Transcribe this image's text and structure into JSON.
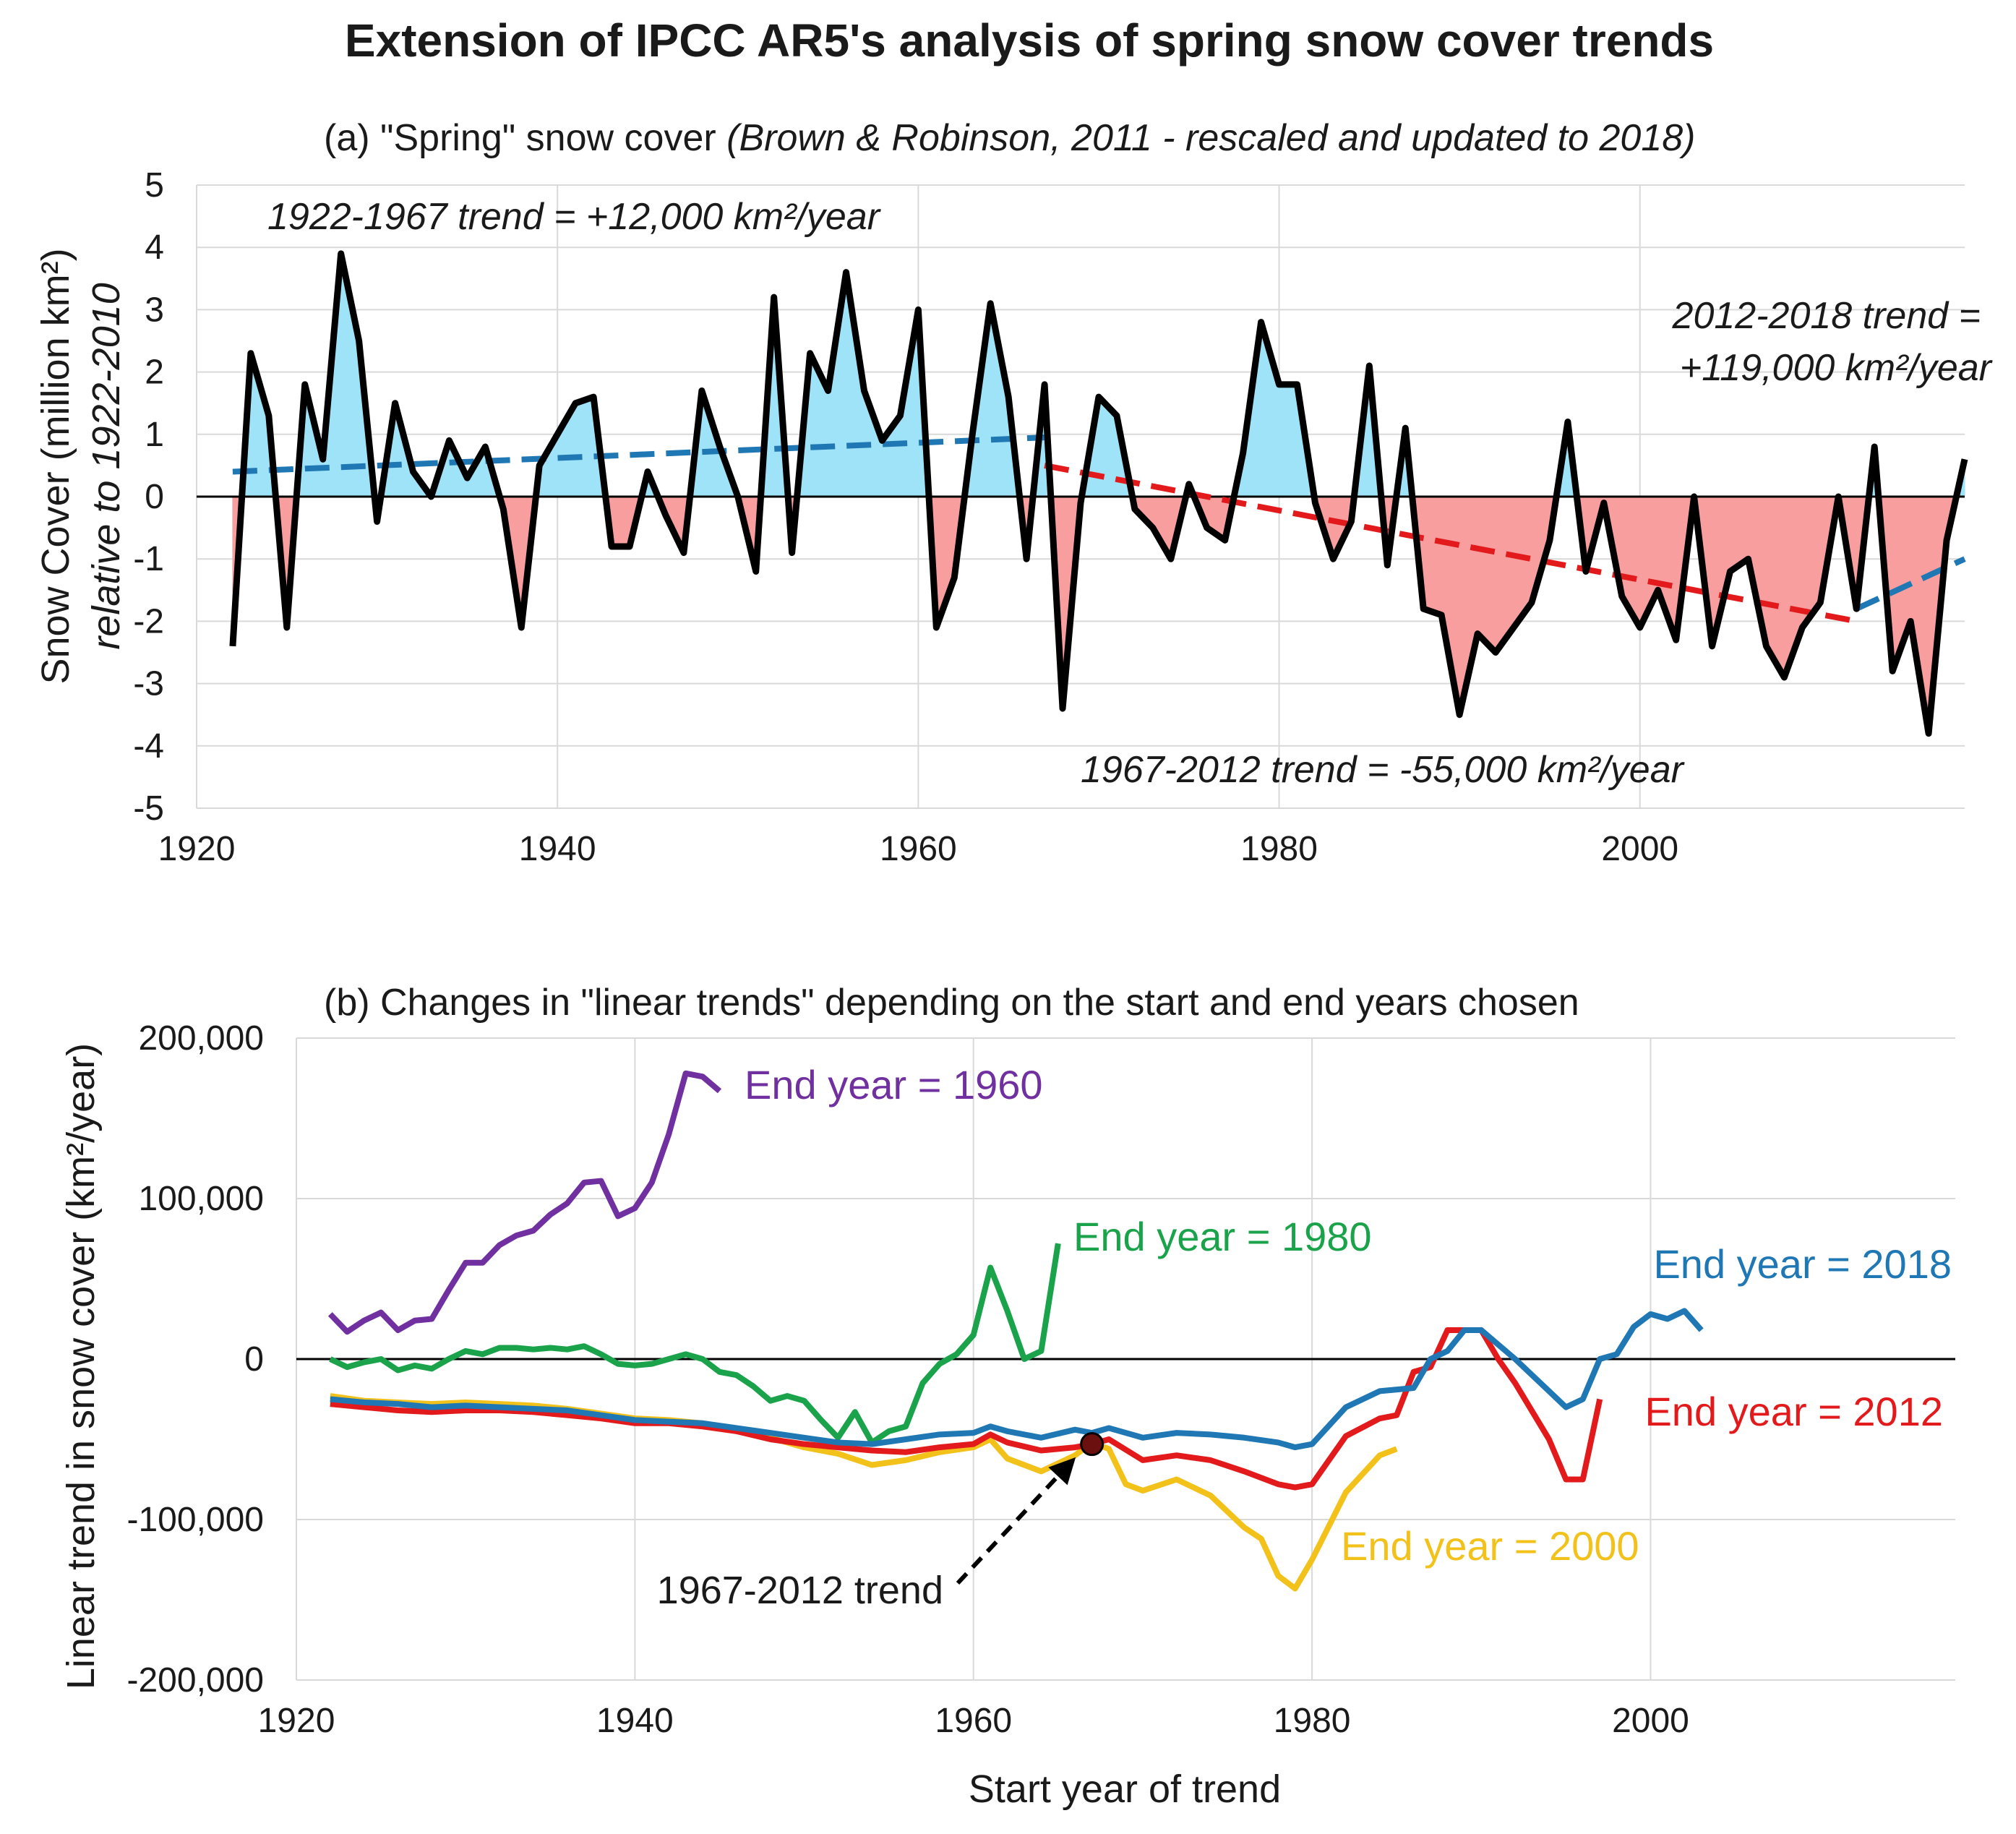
{
  "title": "Extension of IPCC AR5's analysis of spring snow cover trends",
  "colors": {
    "above": "#9ee3f7",
    "below": "#f99e9e",
    "trend_early": "#1f77b4",
    "trend_mid": "#e31a1c",
    "trend_late": "#1f77b4",
    "end_1960": "#7030a0",
    "end_1980": "#1aa34a",
    "end_2018": "#1f77b4",
    "end_2012": "#e31a1c",
    "end_2000": "#f2c21b",
    "marker": "#6b0f0f"
  },
  "chart_data": [
    {
      "id": "a",
      "type": "area",
      "title": "(a) \"Spring\" snow cover",
      "subtitle": "(Brown & Robinson, 2011 - rescaled and updated to 2018)",
      "ylabel": "Snow Cover (million km²)",
      "ylabel2": "relative to 1922-2010",
      "xlim": [
        1920,
        2018
      ],
      "ylim": [
        -5,
        5
      ],
      "xticks": [
        "1920",
        "1940",
        "1960",
        "1980",
        "2000"
      ],
      "yticks": [
        "5",
        "4",
        "3",
        "2",
        "1",
        "0",
        "-1",
        "-2",
        "-3",
        "-4",
        "-5"
      ],
      "grid": true,
      "x": [
        1922,
        1923,
        1924,
        1925,
        1926,
        1927,
        1928,
        1929,
        1930,
        1931,
        1932,
        1933,
        1934,
        1935,
        1936,
        1937,
        1938,
        1939,
        1940,
        1941,
        1942,
        1943,
        1944,
        1945,
        1946,
        1947,
        1948,
        1949,
        1950,
        1951,
        1952,
        1953,
        1954,
        1955,
        1956,
        1957,
        1958,
        1959,
        1960,
        1961,
        1962,
        1963,
        1964,
        1965,
        1966,
        1967,
        1968,
        1969,
        1970,
        1971,
        1972,
        1973,
        1974,
        1975,
        1976,
        1977,
        1978,
        1979,
        1980,
        1981,
        1982,
        1983,
        1984,
        1985,
        1986,
        1987,
        1988,
        1989,
        1990,
        1991,
        1992,
        1993,
        1994,
        1995,
        1996,
        1997,
        1998,
        1999,
        2000,
        2001,
        2002,
        2003,
        2004,
        2005,
        2006,
        2007,
        2008,
        2009,
        2010,
        2011,
        2012,
        2013,
        2014,
        2015,
        2016,
        2017,
        2018
      ],
      "values": [
        -2.4,
        2.3,
        1.3,
        -2.1,
        1.8,
        0.6,
        3.9,
        2.5,
        -0.4,
        1.5,
        0.4,
        0,
        0.9,
        0.3,
        0.8,
        -0.2,
        -2.1,
        0.5,
        1,
        1.5,
        1.6,
        -0.8,
        -0.8,
        0.4,
        -0.3,
        -0.9,
        1.7,
        0.8,
        0,
        -1.2,
        3.2,
        -0.9,
        2.3,
        1.7,
        3.6,
        1.7,
        0.9,
        1.3,
        3,
        -2.1,
        -1.3,
        1,
        3.1,
        1.6,
        -1,
        1.8,
        -3.4,
        -0.1,
        1.6,
        1.3,
        -0.2,
        -0.5,
        -1,
        0.2,
        -0.5,
        -0.7,
        0.7,
        2.8,
        1.8,
        1.8,
        -0.1,
        -1,
        -0.4,
        2.1,
        -1.1,
        1.1,
        -1.8,
        -1.9,
        -3.5,
        -2.2,
        -2.5,
        -2.1,
        -1.7,
        -0.7,
        1.2,
        -1.2,
        -0.1,
        -1.6,
        -2.1,
        -1.5,
        -2.3,
        0,
        -2.4,
        -1.2,
        -1,
        -2.4,
        -2.9,
        -2.1,
        -1.7,
        0,
        -1.8,
        0.8,
        -2.8,
        -2,
        -3.8,
        -0.7,
        0.6
      ],
      "trends": [
        {
          "label": "1922-1967 trend = +12,000 km²/year",
          "x": [
            1922,
            1967
          ],
          "y": [
            0.4,
            0.95
          ],
          "color_key": "trend_early"
        },
        {
          "label": "1967-2012 trend = -55,000 km²/year",
          "x": [
            1967,
            2012
          ],
          "y": [
            0.5,
            -2.0
          ],
          "color_key": "trend_mid"
        },
        {
          "label_line1": "2012-2018 trend =",
          "label_line2": "+119,000 km²/year",
          "x": [
            2012,
            2018
          ],
          "y": [
            -1.8,
            -1.0
          ],
          "color_key": "trend_late"
        }
      ]
    },
    {
      "id": "b",
      "type": "line",
      "title": "(b) Changes in \"linear trends\" depending on the start and end years chosen",
      "xlabel": "Start year of trend",
      "ylabel": "Linear trend in snow cover (km²/year)",
      "xlim": [
        1920,
        2018
      ],
      "ylim": [
        -200000,
        200000
      ],
      "xticks": [
        "1920",
        "1940",
        "1960",
        "1980",
        "2000"
      ],
      "yticks": [
        "200,000",
        "100,000",
        "0",
        "-100,000",
        "-200,000"
      ],
      "grid": true,
      "series": [
        {
          "name": "End year = 1960",
          "color_key": "end_1960",
          "x": [
            1922,
            1923,
            1924,
            1925,
            1926,
            1927,
            1928,
            1929,
            1930,
            1931,
            1932,
            1933,
            1934,
            1935,
            1936,
            1937,
            1938,
            1939,
            1940,
            1941,
            1942,
            1943,
            1944,
            1945
          ],
          "values": [
            28000,
            17000,
            24000,
            29000,
            18000,
            24000,
            25000,
            43000,
            60000,
            60000,
            71000,
            77000,
            80000,
            90000,
            97000,
            110000,
            111000,
            89000,
            94000,
            110000,
            140000,
            178000,
            176000,
            167000
          ]
        },
        {
          "name": "End year = 1980",
          "color_key": "end_1980",
          "x": [
            1922,
            1923,
            1924,
            1925,
            1926,
            1927,
            1928,
            1929,
            1930,
            1931,
            1932,
            1933,
            1934,
            1935,
            1936,
            1937,
            1938,
            1939,
            1940,
            1941,
            1942,
            1943,
            1944,
            1945,
            1946,
            1947,
            1948,
            1949,
            1950,
            1951,
            1952,
            1953,
            1954,
            1955,
            1956,
            1957,
            1958,
            1959,
            1960,
            1961,
            1962,
            1963,
            1964,
            1965
          ],
          "values": [
            0,
            -5000,
            -2000,
            0,
            -7000,
            -4000,
            -6000,
            0,
            5000,
            3000,
            7000,
            7000,
            6000,
            7000,
            6000,
            8000,
            3000,
            -3000,
            -4000,
            -3000,
            0,
            3000,
            0,
            -8000,
            -10000,
            -17000,
            -26000,
            -23000,
            -26000,
            -38000,
            -49000,
            -33000,
            -52000,
            -45000,
            -42000,
            -15000,
            -3000,
            3000,
            15000,
            57000,
            30000,
            0,
            5000,
            72000
          ]
        },
        {
          "name": "End year = 2018",
          "color_key": "end_2018",
          "x": [
            1922,
            1924,
            1926,
            1928,
            1930,
            1932,
            1934,
            1936,
            1938,
            1940,
            1942,
            1944,
            1946,
            1948,
            1950,
            1952,
            1954,
            1956,
            1958,
            1960,
            1961,
            1962,
            1964,
            1966,
            1967,
            1968,
            1970,
            1972,
            1974,
            1976,
            1978,
            1979,
            1980,
            1982,
            1984,
            1986,
            1987,
            1988,
            1989,
            1990,
            1992,
            1994,
            1995,
            1996,
            1997,
            1998,
            1999,
            2000,
            2001,
            2002,
            2003
          ],
          "values": [
            -25000,
            -27000,
            -28000,
            -30000,
            -29000,
            -30000,
            -31000,
            -32000,
            -35000,
            -38000,
            -39000,
            -40000,
            -43000,
            -46000,
            -49000,
            -52000,
            -53000,
            -50000,
            -47000,
            -46000,
            -42000,
            -45000,
            -49000,
            -44000,
            -46000,
            -43000,
            -49000,
            -46000,
            -47000,
            -49000,
            -52000,
            -55000,
            -53000,
            -30000,
            -20000,
            -18000,
            0,
            5000,
            18000,
            18000,
            0,
            -20000,
            -30000,
            -25000,
            0,
            3000,
            20000,
            28000,
            25000,
            30000,
            18000
          ]
        },
        {
          "name": "End year = 2012",
          "color_key": "end_2012",
          "x": [
            1922,
            1924,
            1926,
            1928,
            1930,
            1932,
            1934,
            1936,
            1938,
            1940,
            1942,
            1944,
            1946,
            1948,
            1950,
            1952,
            1954,
            1956,
            1958,
            1960,
            1961,
            1962,
            1964,
            1966,
            1967,
            1968,
            1970,
            1972,
            1974,
            1976,
            1978,
            1979,
            1980,
            1982,
            1984,
            1985,
            1986,
            1987,
            1988,
            1989,
            1990,
            1991,
            1992,
            1994,
            1995,
            1996,
            1997
          ],
          "values": [
            -28000,
            -30000,
            -32000,
            -33000,
            -32000,
            -32000,
            -33000,
            -35000,
            -37000,
            -40000,
            -40000,
            -42000,
            -45000,
            -50000,
            -53000,
            -55000,
            -57000,
            -58000,
            -55000,
            -53000,
            -47000,
            -52000,
            -57000,
            -55000,
            -53000,
            -50000,
            -63000,
            -60000,
            -63000,
            -70000,
            -78000,
            -80000,
            -78000,
            -48000,
            -37000,
            -35000,
            -8000,
            -5000,
            18000,
            18000,
            18000,
            0,
            -15000,
            -50000,
            -75000,
            -75000,
            -25000
          ]
        },
        {
          "name": "End year = 2000",
          "color_key": "end_2000",
          "x": [
            1922,
            1924,
            1926,
            1928,
            1930,
            1932,
            1934,
            1936,
            1938,
            1940,
            1942,
            1944,
            1946,
            1948,
            1950,
            1952,
            1954,
            1956,
            1958,
            1960,
            1961,
            1962,
            1964,
            1966,
            1967,
            1968,
            1969,
            1970,
            1972,
            1974,
            1976,
            1977,
            1978,
            1979,
            1980,
            1982,
            1984,
            1985
          ],
          "values": [
            -23000,
            -26000,
            -27000,
            -28000,
            -27000,
            -28000,
            -29000,
            -31000,
            -34000,
            -37000,
            -38000,
            -40000,
            -44000,
            -49000,
            -55000,
            -59000,
            -66000,
            -63000,
            -58000,
            -55000,
            -50000,
            -62000,
            -70000,
            -60000,
            -52000,
            -56000,
            -78000,
            -82000,
            -75000,
            -85000,
            -105000,
            -112000,
            -135000,
            -143000,
            -125000,
            -83000,
            -60000,
            -56000
          ]
        }
      ],
      "point": {
        "label": "1967-2012 trend",
        "x": 1967,
        "y": -53000
      }
    }
  ]
}
